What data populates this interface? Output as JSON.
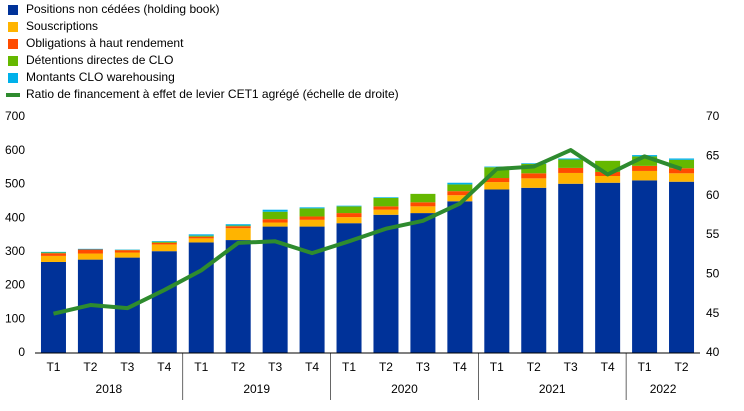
{
  "chart_data": {
    "type": "stacked-bar-line",
    "categories": [
      "T1",
      "T2",
      "T3",
      "T4",
      "T1",
      "T2",
      "T3",
      "T4",
      "T1",
      "T2",
      "T3",
      "T4",
      "T1",
      "T2",
      "T3",
      "T4",
      "T1",
      "T2"
    ],
    "category_groups": [
      "2018",
      "2018",
      "2018",
      "2018",
      "2019",
      "2019",
      "2019",
      "2019",
      "2020",
      "2020",
      "2020",
      "2020",
      "2021",
      "2021",
      "2021",
      "2021",
      "2022",
      "2022"
    ],
    "series": [
      {
        "name": "Positions non cédées (holding book)",
        "color": "#003299",
        "values": [
          270,
          277,
          283,
          302,
          328,
          335,
          375,
          375,
          385,
          410,
          415,
          450,
          485,
          490,
          502,
          505,
          512,
          508
        ]
      },
      {
        "name": "Souscriptions",
        "color": "#ffb400",
        "values": [
          18,
          18,
          15,
          20,
          12,
          35,
          12,
          20,
          18,
          15,
          20,
          18,
          22,
          28,
          32,
          20,
          28,
          25
        ]
      },
      {
        "name": "Obligations à haut rendement",
        "color": "#ff4b00",
        "values": [
          8,
          12,
          7,
          5,
          5,
          6,
          10,
          10,
          12,
          10,
          12,
          12,
          12,
          15,
          15,
          12,
          15,
          15
        ]
      },
      {
        "name": "Détentions directes de CLO",
        "color": "#65b800",
        "values": [
          2,
          0,
          1,
          3,
          3,
          2,
          22,
          24,
          20,
          25,
          25,
          20,
          32,
          28,
          25,
          33,
          28,
          25
        ]
      },
      {
        "name": "Montants CLO warehousing",
        "color": "#00b1ea",
        "values": [
          2,
          2,
          1,
          2,
          4,
          4,
          6,
          3,
          2,
          2,
          0,
          5,
          2,
          2,
          3,
          0,
          4,
          4
        ]
      },
      {
        "name": "Ratio de financement à effet de levier CET1 agrégé (échelle de droite)",
        "color": "#2e8b2e",
        "axis": "y2",
        "values": [
          45,
          46.1,
          45.7,
          48,
          50.5,
          54,
          54.2,
          52.7,
          54.2,
          55.8,
          56.8,
          59,
          63.4,
          63.7,
          65.8,
          62.7,
          65,
          63.4
        ]
      }
    ],
    "ylim": [
      0,
      700
    ],
    "yticks": [
      0,
      100,
      200,
      300,
      400,
      500,
      600,
      700
    ],
    "y2lim": [
      40,
      70
    ],
    "y2ticks": [
      40,
      45,
      50,
      55,
      60,
      65,
      70
    ],
    "grid": false
  }
}
